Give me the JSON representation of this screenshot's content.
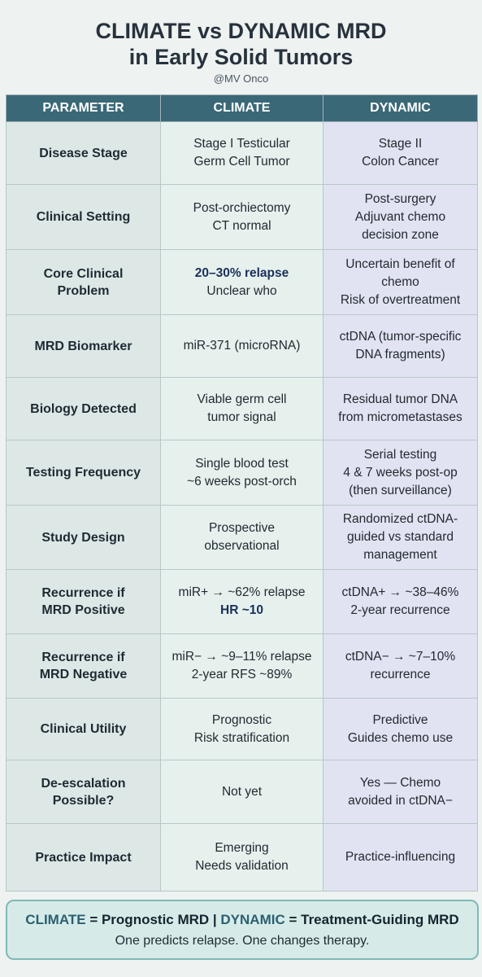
{
  "header": {
    "title_line1": "CLIMATE vs DYNAMIC MRD",
    "title_line2": "in Early Solid Tumors",
    "handle": "@MV Onco"
  },
  "table": {
    "columns": [
      "PARAMETER",
      "CLIMATE",
      "DYNAMIC"
    ],
    "rows": [
      {
        "param": [
          "Disease Stage"
        ],
        "climate": [
          "Stage I Testicular",
          "Germ Cell Tumor"
        ],
        "dynamic": [
          "Stage II",
          "Colon Cancer"
        ]
      },
      {
        "param": [
          "Clinical Setting"
        ],
        "climate": [
          "Post-orchiectomy",
          "CT normal"
        ],
        "dynamic": [
          "Post-surgery",
          "Adjuvant chemo",
          "decision zone"
        ]
      },
      {
        "param": [
          "Core Clinical",
          "Problem"
        ],
        "climate": [
          "20–30% relapse",
          "Unclear who"
        ],
        "dynamic": [
          "Uncertain benefit of",
          "chemo",
          "Risk of overtreatment"
        ]
      },
      {
        "param": [
          "MRD Biomarker"
        ],
        "climate": [
          "miR-371 (microRNA)"
        ],
        "dynamic": [
          "ctDNA (tumor-specific",
          "DNA fragments)"
        ]
      },
      {
        "param": [
          "Biology Detected"
        ],
        "climate": [
          "Viable germ cell",
          "tumor signal"
        ],
        "dynamic": [
          "Residual tumor DNA",
          "from micrometastases"
        ]
      },
      {
        "param": [
          "Testing Frequency"
        ],
        "climate": [
          "Single blood test",
          "~6 weeks post-orch"
        ],
        "dynamic": [
          "Serial testing",
          "4 & 7 weeks post-op",
          "(then surveillance)"
        ]
      },
      {
        "param": [
          "Study Design"
        ],
        "climate": [
          "Prospective",
          "observational"
        ],
        "dynamic": [
          "Randomized ctDNA-",
          "guided vs standard",
          "management"
        ]
      },
      {
        "param": [
          "Recurrence if",
          "MRD Positive"
        ],
        "climate": [
          "miR+ → ~62% relapse",
          "HR ~10"
        ],
        "dynamic": [
          "ctDNA+ → ~38–46%",
          "2-year recurrence"
        ]
      },
      {
        "param": [
          "Recurrence if",
          "MRD Negative"
        ],
        "climate": [
          "miR− → ~9–11% relapse",
          "2-year RFS ~89%"
        ],
        "dynamic": [
          "ctDNA− → ~7–10%",
          "recurrence"
        ]
      },
      {
        "param": [
          "Clinical Utility"
        ],
        "climate": [
          "Prognostic",
          "Risk stratification"
        ],
        "dynamic": [
          "Predictive",
          "Guides chemo use"
        ]
      },
      {
        "param": [
          "De-escalation",
          "Possible?"
        ],
        "climate": [
          "Not yet"
        ],
        "dynamic": [
          "Yes — Chemo",
          "avoided in ctDNA−"
        ]
      },
      {
        "param": [
          "Practice Impact"
        ],
        "climate": [
          "Emerging",
          "Needs validation"
        ],
        "dynamic": [
          "Practice-influencing"
        ]
      }
    ]
  },
  "footer": {
    "climate_word": "CLIMATE",
    "eq1": " = ",
    "climate_def": "Prognostic MRD",
    "sep": " | ",
    "dynamic_word": "DYNAMIC",
    "eq2": " = ",
    "dynamic_def": "Treatment-Guiding MRD",
    "tagline": "One predicts relapse. One changes therapy."
  },
  "colors": {
    "header_bg": "#3a6877",
    "param_bg": "#dde8e6",
    "climate_bg": "#e6f1ee",
    "dynamic_bg": "#e1e3f2",
    "footer_bg": "#d6ebe8",
    "highlight": "#1b2f5a"
  }
}
